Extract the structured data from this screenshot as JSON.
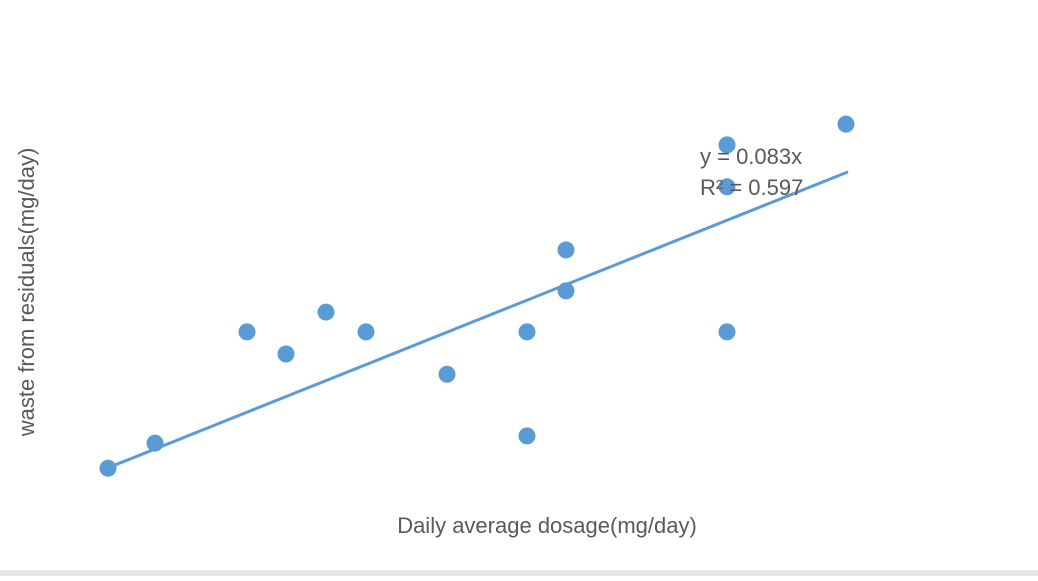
{
  "chart_data": {
    "type": "scatter",
    "x_label": "Daily average dosage(mg/day)",
    "y_label": "waste from residuals(mg/day)",
    "xlim": [
      0,
      880
    ],
    "ylim": [
      0,
      80
    ],
    "series": [
      {
        "color": "#5b9bd5",
        "x": [
          48,
          95,
          187,
          226,
          266,
          306,
          387,
          467,
          467,
          506,
          506,
          667,
          667,
          667,
          786
        ],
        "values": [
          3.9,
          9.1,
          32.2,
          27.6,
          36.3,
          32.2,
          23.4,
          32.2,
          10.6,
          49.2,
          40.7,
          71.0,
          62.3,
          32.2,
          75.3
        ]
      }
    ],
    "trendline": {
      "equation": "y = 0.083x",
      "r_squared_label": "R² = 0.597",
      "slope": 0.083,
      "r_squared": 0.597,
      "x_range": [
        48,
        788
      ],
      "color": "#5b9bd5"
    }
  }
}
